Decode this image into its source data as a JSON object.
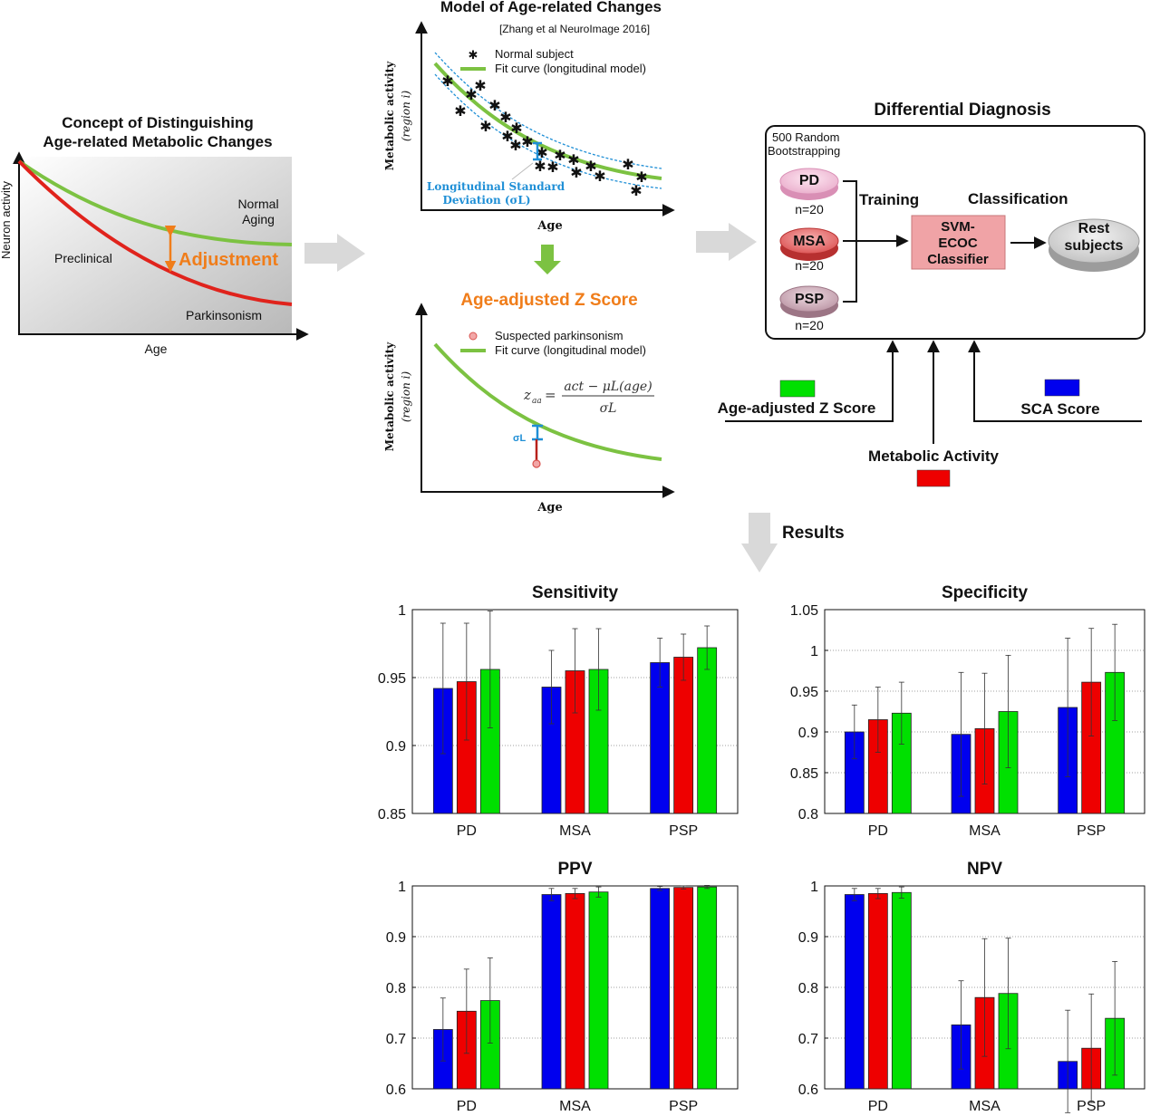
{
  "concept": {
    "title_line1": "Concept of Distinguishing",
    "title_line2": "Age-related Metabolic Changes",
    "ylabel": "Neuron activity",
    "xlabel": "Age",
    "normal_line1": "Normal",
    "normal_line2": "Aging",
    "preclinical": "Preclinical",
    "parkinsonism": "Parkinsonism",
    "adjustment": "Adjustment"
  },
  "model": {
    "title": "Model of Age-related Changes",
    "citation": "[Zhang et al NeuroImage 2016]",
    "ylabel_line1": "Metabolic activity",
    "ylabel_line2": "(region i)",
    "xlabel": "Age",
    "legend_normal": "Normal subject",
    "legend_fit": "Fit curve (longitudinal model)",
    "sd_line1": "Longitudinal Standard",
    "sd_line2": "Deviation (σL)"
  },
  "zscore": {
    "title": "Age-adjusted Z Score",
    "ylabel_line1": "Metabolic activity",
    "ylabel_line2": "(region i)",
    "xlabel": "Age",
    "legend_suspected": "Suspected parkinsonism",
    "legend_fit": "Fit curve (longitudinal model)",
    "formula_lhs": "z",
    "formula_sub": "aa",
    "formula_num": "act − μL(age)",
    "formula_den": "σL",
    "sigma_label": "σL"
  },
  "diagnosis": {
    "title": "Differential Diagnosis",
    "bootstrap_line1": "500 Random",
    "bootstrap_line2": "Bootstrapping",
    "groups": [
      {
        "label": "PD",
        "n": "n=20",
        "color": "#f2bfd8"
      },
      {
        "label": "MSA",
        "n": "n=20",
        "color": "#e86f6f"
      },
      {
        "label": "PSP",
        "n": "n=20",
        "color": "#c9a3b1"
      }
    ],
    "training": "Training",
    "classification": "Classification",
    "classifier_line1": "SVM-",
    "classifier_line2": "ECOC",
    "classifier_line3": "Classifier",
    "rest_line1": "Rest",
    "rest_line2": "subjects",
    "input_zscore": "Age-adjusted Z Score",
    "input_metabolic": "Metabolic Activity",
    "input_sca": "SCA Score",
    "color_zscore": "#00e000",
    "color_metabolic": "#ee0000",
    "color_sca": "#0000ee"
  },
  "results_label": "Results",
  "chart_data": [
    {
      "type": "bar",
      "title": "Sensitivity",
      "categories": [
        "PD",
        "MSA",
        "PSP"
      ],
      "ylim": [
        0.85,
        1
      ],
      "yticks": [
        "0.85",
        "0.9",
        "0.95",
        "1"
      ],
      "grid": true,
      "series": [
        {
          "color": "#0000ee",
          "values": [
            0.942,
            0.943,
            0.961
          ],
          "err": [
            0.048,
            0.027,
            0.018
          ]
        },
        {
          "color": "#ee0000",
          "values": [
            0.947,
            0.955,
            0.965
          ],
          "err": [
            0.043,
            0.031,
            0.017
          ]
        },
        {
          "color": "#00e000",
          "values": [
            0.956,
            0.956,
            0.972
          ],
          "err": [
            0.043,
            0.03,
            0.016
          ]
        }
      ]
    },
    {
      "type": "bar",
      "title": "Specificity",
      "categories": [
        "PD",
        "MSA",
        "PSP"
      ],
      "ylim": [
        0.8,
        1.05
      ],
      "yticks": [
        "0.8",
        "0.85",
        "0.9",
        "0.95",
        "1",
        "1.05"
      ],
      "grid": true,
      "series": [
        {
          "color": "#0000ee",
          "values": [
            0.9,
            0.897,
            0.93
          ],
          "err": [
            0.033,
            0.076,
            0.085
          ]
        },
        {
          "color": "#ee0000",
          "values": [
            0.915,
            0.904,
            0.961
          ],
          "err": [
            0.04,
            0.068,
            0.066
          ]
        },
        {
          "color": "#00e000",
          "values": [
            0.923,
            0.925,
            0.973
          ],
          "err": [
            0.038,
            0.069,
            0.059
          ]
        }
      ]
    },
    {
      "type": "bar",
      "title": "PPV",
      "categories": [
        "PD",
        "MSA",
        "PSP"
      ],
      "ylim": [
        0.6,
        1
      ],
      "yticks": [
        "0.6",
        "0.7",
        "0.8",
        "0.9",
        "1"
      ],
      "grid": true,
      "series": [
        {
          "color": "#0000ee",
          "values": [
            0.717,
            0.983,
            0.995
          ],
          "err": [
            0.062,
            0.012,
            0.004
          ]
        },
        {
          "color": "#ee0000",
          "values": [
            0.753,
            0.985,
            0.997
          ],
          "err": [
            0.083,
            0.01,
            0.003
          ]
        },
        {
          "color": "#00e000",
          "values": [
            0.774,
            0.988,
            0.998
          ],
          "err": [
            0.084,
            0.01,
            0.003
          ]
        }
      ]
    },
    {
      "type": "bar",
      "title": "NPV",
      "categories": [
        "PD",
        "MSA",
        "PSP"
      ],
      "ylim": [
        0.6,
        1
      ],
      "yticks": [
        "0.6",
        "0.7",
        "0.8",
        "0.9",
        "1"
      ],
      "grid": true,
      "series": [
        {
          "color": "#0000ee",
          "values": [
            0.983,
            0.726,
            0.654
          ],
          "err": [
            0.012,
            0.087,
            0.101
          ]
        },
        {
          "color": "#ee0000",
          "values": [
            0.985,
            0.78,
            0.68
          ],
          "err": [
            0.01,
            0.116,
            0.107
          ]
        },
        {
          "color": "#00e000",
          "values": [
            0.987,
            0.788,
            0.739
          ],
          "err": [
            0.011,
            0.109,
            0.112
          ]
        }
      ]
    }
  ]
}
